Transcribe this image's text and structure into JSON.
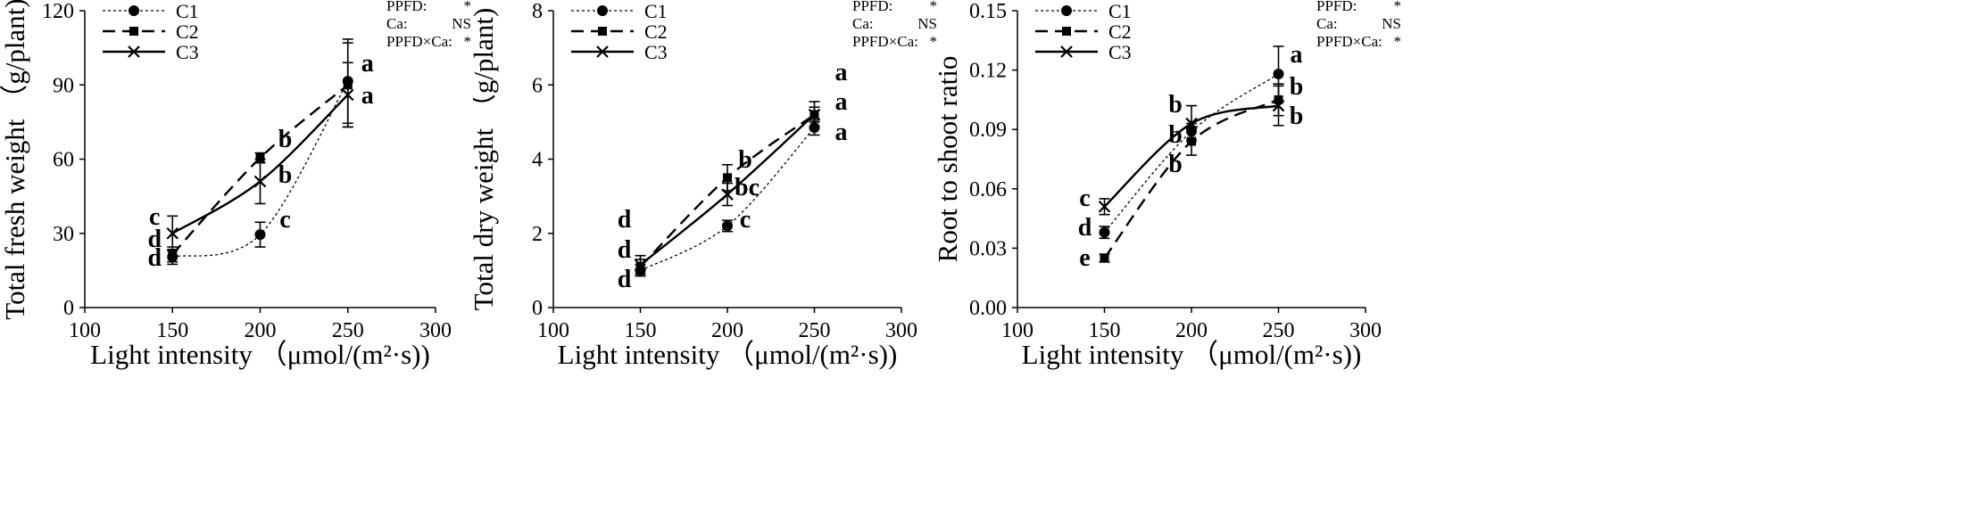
{
  "figure": {
    "panels": [
      {
        "chart_data": {
          "type": "line",
          "title": "",
          "xlabel": "Light intensity （μmol/(m²·s))",
          "ylabel": "Total fresh weight （g/plant)",
          "xlim": [
            100,
            300
          ],
          "ylim": [
            0,
            120
          ],
          "xticks": [
            100,
            150,
            200,
            250,
            300
          ],
          "yticks": [
            0,
            30,
            60,
            90,
            120
          ],
          "ytick_labels": [
            "0",
            "30",
            "60",
            "90",
            "120"
          ],
          "x": [
            150,
            200,
            250
          ],
          "series": [
            {
              "name": "C1",
              "values": [
                20.5,
                29.5,
                91.5
              ],
              "errors": [
                3.0,
                5.0,
                17.0
              ],
              "letters": [
                "d",
                "c",
                "a"
              ]
            },
            {
              "name": "C2",
              "values": [
                21.5,
                60.5,
                90.0
              ],
              "errors": [
                3.0,
                2.0,
                17.0
              ],
              "letters": [
                "d",
                "b",
                "a"
              ]
            },
            {
              "name": "C3",
              "values": [
                30.0,
                51.0,
                86.0
              ],
              "errors": [
                7.0,
                9.0,
                13.0
              ],
              "letters": [
                "c",
                "b",
                "a"
              ]
            }
          ],
          "stats": [
            {
              "label": "PPFD:",
              "value": "*"
            },
            {
              "label": "Ca:",
              "value": "NS"
            },
            {
              "label": "PPFD×Ca:",
              "value": "*"
            }
          ]
        }
      },
      {
        "chart_data": {
          "type": "line",
          "title": "",
          "xlabel": "Light intensity （μmol/(m²·s))",
          "ylabel": "Total dry weight （g/plant)",
          "xlim": [
            100,
            300
          ],
          "ylim": [
            0,
            8
          ],
          "xticks": [
            100,
            150,
            200,
            250,
            300
          ],
          "yticks": [
            0,
            2,
            4,
            6,
            8
          ],
          "ytick_labels": [
            "0",
            "2",
            "4",
            "6",
            "8"
          ],
          "x": [
            150,
            200,
            250
          ],
          "series": [
            {
              "name": "C1",
              "values": [
                1.0,
                2.2,
                4.85
              ],
              "errors": [
                0.15,
                0.15,
                0.2
              ],
              "letters": [
                "d",
                "c",
                "a"
              ]
            },
            {
              "name": "C2",
              "values": [
                1.1,
                3.5,
                5.2
              ],
              "errors": [
                0.2,
                0.35,
                0.2
              ],
              "letters": [
                "d",
                "b",
                "a"
              ]
            },
            {
              "name": "C3",
              "values": [
                1.15,
                3.05,
                5.2
              ],
              "errors": [
                0.25,
                0.3,
                0.35
              ],
              "letters": [
                "d",
                "bc",
                "a"
              ]
            }
          ],
          "stats": [
            {
              "label": "PPFD:",
              "value": "*"
            },
            {
              "label": "Ca:",
              "value": "NS"
            },
            {
              "label": "PPFD×Ca:",
              "value": "*"
            }
          ]
        }
      },
      {
        "chart_data": {
          "type": "line",
          "title": "",
          "xlabel": "Light intensity （μmol/(m²·s))",
          "ylabel": "Root to shoot ratio",
          "xlim": [
            100,
            300
          ],
          "ylim": [
            0,
            0.15
          ],
          "xticks": [
            100,
            150,
            200,
            250,
            300
          ],
          "yticks": [
            0,
            0.03,
            0.06,
            0.09,
            0.12,
            0.15
          ],
          "ytick_labels": [
            "0.00",
            "0.03",
            "0.06",
            "0.09",
            "0.12",
            "0.15"
          ],
          "x": [
            150,
            200,
            250
          ],
          "series": [
            {
              "name": "C1",
              "values": [
                0.038,
                0.089,
                0.118
              ],
              "errors": [
                0.003,
                0.004,
                0.014
              ],
              "letters": [
                "d",
                "b",
                "a"
              ]
            },
            {
              "name": "C2",
              "values": [
                0.025,
                0.084,
                0.105
              ],
              "errors": [
                0.002,
                0.007,
                0.008
              ],
              "letters": [
                "e",
                "b",
                "b"
              ]
            },
            {
              "name": "C3",
              "values": [
                0.051,
                0.093,
                0.102
              ],
              "errors": [
                0.004,
                0.009,
                0.01
              ],
              "letters": [
                "c",
                "b",
                "b"
              ]
            }
          ],
          "stats": [
            {
              "label": "PPFD:",
              "value": "*"
            },
            {
              "label": "Ca:",
              "value": "NS"
            },
            {
              "label": "PPFD×Ca:",
              "value": "*"
            }
          ]
        }
      }
    ]
  }
}
